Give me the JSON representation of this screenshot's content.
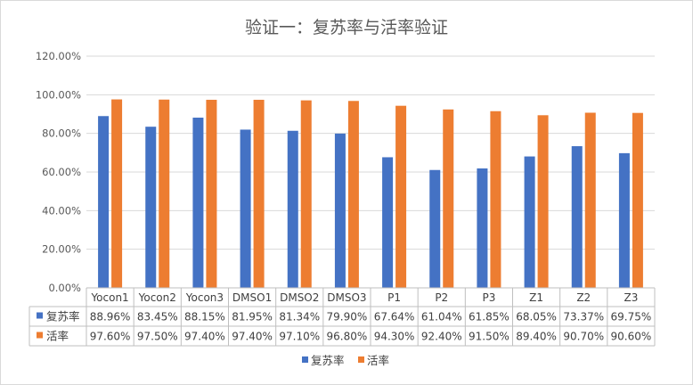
{
  "chart_data": {
    "type": "bar",
    "title": "验证一：复苏率与活率验证",
    "categories": [
      "Yocon1",
      "Yocon2",
      "Yocon3",
      "DMSO1",
      "DMSO2",
      "DMSO3",
      "P1",
      "P2",
      "P3",
      "Z1",
      "Z2",
      "Z3"
    ],
    "series": [
      {
        "name": "复苏率",
        "color": "#4472C4",
        "values": [
          88.96,
          83.45,
          88.15,
          81.95,
          81.34,
          79.9,
          67.64,
          61.04,
          61.85,
          68.05,
          73.37,
          69.75
        ],
        "labels": [
          "88.96%",
          "83.45%",
          "88.15%",
          "81.95%",
          "81.34%",
          "79.90%",
          "67.64%",
          "61.04%",
          "61.85%",
          "68.05%",
          "73.37%",
          "69.75%"
        ]
      },
      {
        "name": "活率",
        "color": "#ED7D31",
        "values": [
          97.6,
          97.5,
          97.4,
          97.4,
          97.1,
          96.8,
          94.3,
          92.4,
          91.5,
          89.4,
          90.7,
          90.6
        ],
        "labels": [
          "97.60%",
          "97.50%",
          "97.40%",
          "97.40%",
          "97.10%",
          "96.80%",
          "94.30%",
          "92.40%",
          "91.50%",
          "89.40%",
          "90.70%",
          "90.60%"
        ]
      }
    ],
    "y_ticks": [
      "0.00%",
      "20.00%",
      "40.00%",
      "60.00%",
      "80.00%",
      "100.00%",
      "120.00%"
    ],
    "ylim": [
      0,
      120
    ],
    "grid": true,
    "legend_position": "bottom",
    "data_table": true
  }
}
